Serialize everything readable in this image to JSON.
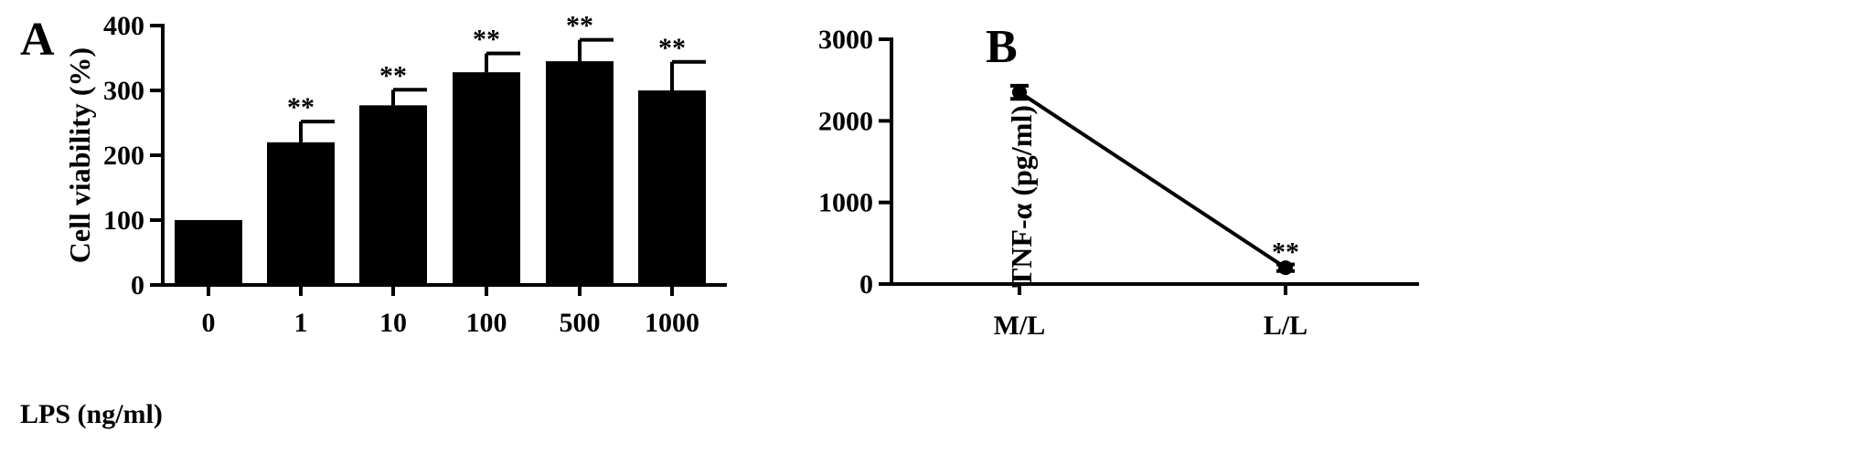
{
  "chart_data": [
    {
      "panel": "A",
      "type": "bar",
      "title": "",
      "xlabel": "LPS (ng/ml)",
      "ylabel": "Cell viability  (%)",
      "ylim": [
        0,
        400
      ],
      "yticks": [
        "0",
        "100",
        "200",
        "300",
        "400"
      ],
      "categories": [
        "0",
        "1",
        "10",
        "100",
        "500",
        "1000"
      ],
      "values": [
        100,
        220,
        277,
        328,
        345,
        300
      ],
      "errors": [
        0,
        32,
        24,
        29,
        33,
        44
      ],
      "significance": [
        "",
        "**",
        "**",
        "**",
        "**",
        "**"
      ],
      "bar_color": "#000000",
      "grid": false,
      "legend": "none"
    },
    {
      "panel": "B",
      "type": "line",
      "title": "",
      "xlabel": "",
      "ylabel": "TNF-α (pg/ml)",
      "ylim": [
        0,
        3000
      ],
      "yticks": [
        "0",
        "1000",
        "2000",
        "3000"
      ],
      "categories": [
        "M/L",
        "L/L"
      ],
      "values": [
        2350,
        200
      ],
      "errors": [
        80,
        40
      ],
      "significance": [
        "",
        "**"
      ],
      "line_color": "#000000",
      "grid": false,
      "legend": "none"
    }
  ]
}
